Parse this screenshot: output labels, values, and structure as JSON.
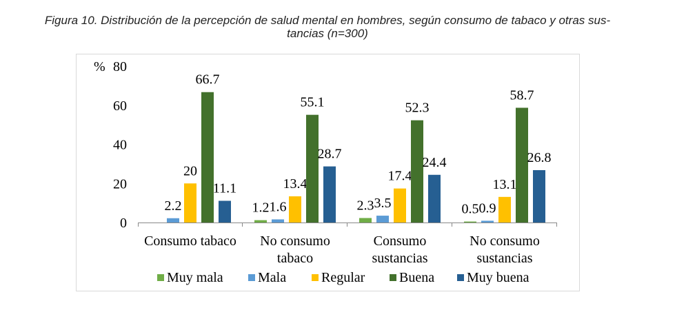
{
  "title_line1": "Figura 10. Distribución de la percepción de salud mental en hombres, según consumo de tabaco y otras sus-",
  "title_line2": "tancias (n=300)",
  "chart_data": {
    "type": "bar",
    "ylabel": "%",
    "ylim": [
      0,
      80
    ],
    "yticks": [
      0,
      20,
      40,
      60,
      80
    ],
    "grid": false,
    "legend": "bottom",
    "categories": [
      [
        "Consumo tabaco"
      ],
      [
        "No consumo",
        "tabaco"
      ],
      [
        "Consumo",
        "sustancias"
      ],
      [
        "No consumo",
        "sustancias"
      ]
    ],
    "series": [
      {
        "name": "Muy mala",
        "color": "#70ad47",
        "values": [
          null,
          1.2,
          2.3,
          0.5
        ]
      },
      {
        "name": "Mala",
        "color": "#5b9bd5",
        "values": [
          2.2,
          1.6,
          3.5,
          0.9
        ]
      },
      {
        "name": "Regular",
        "color": "#ffc000",
        "values": [
          20,
          13.4,
          17.4,
          13.1
        ]
      },
      {
        "name": "Buena",
        "color": "#43712c",
        "values": [
          66.7,
          55.1,
          52.3,
          58.7
        ]
      },
      {
        "name": "Muy buena",
        "color": "#265f92",
        "values": [
          11.1,
          28.7,
          24.4,
          26.8
        ]
      }
    ]
  }
}
